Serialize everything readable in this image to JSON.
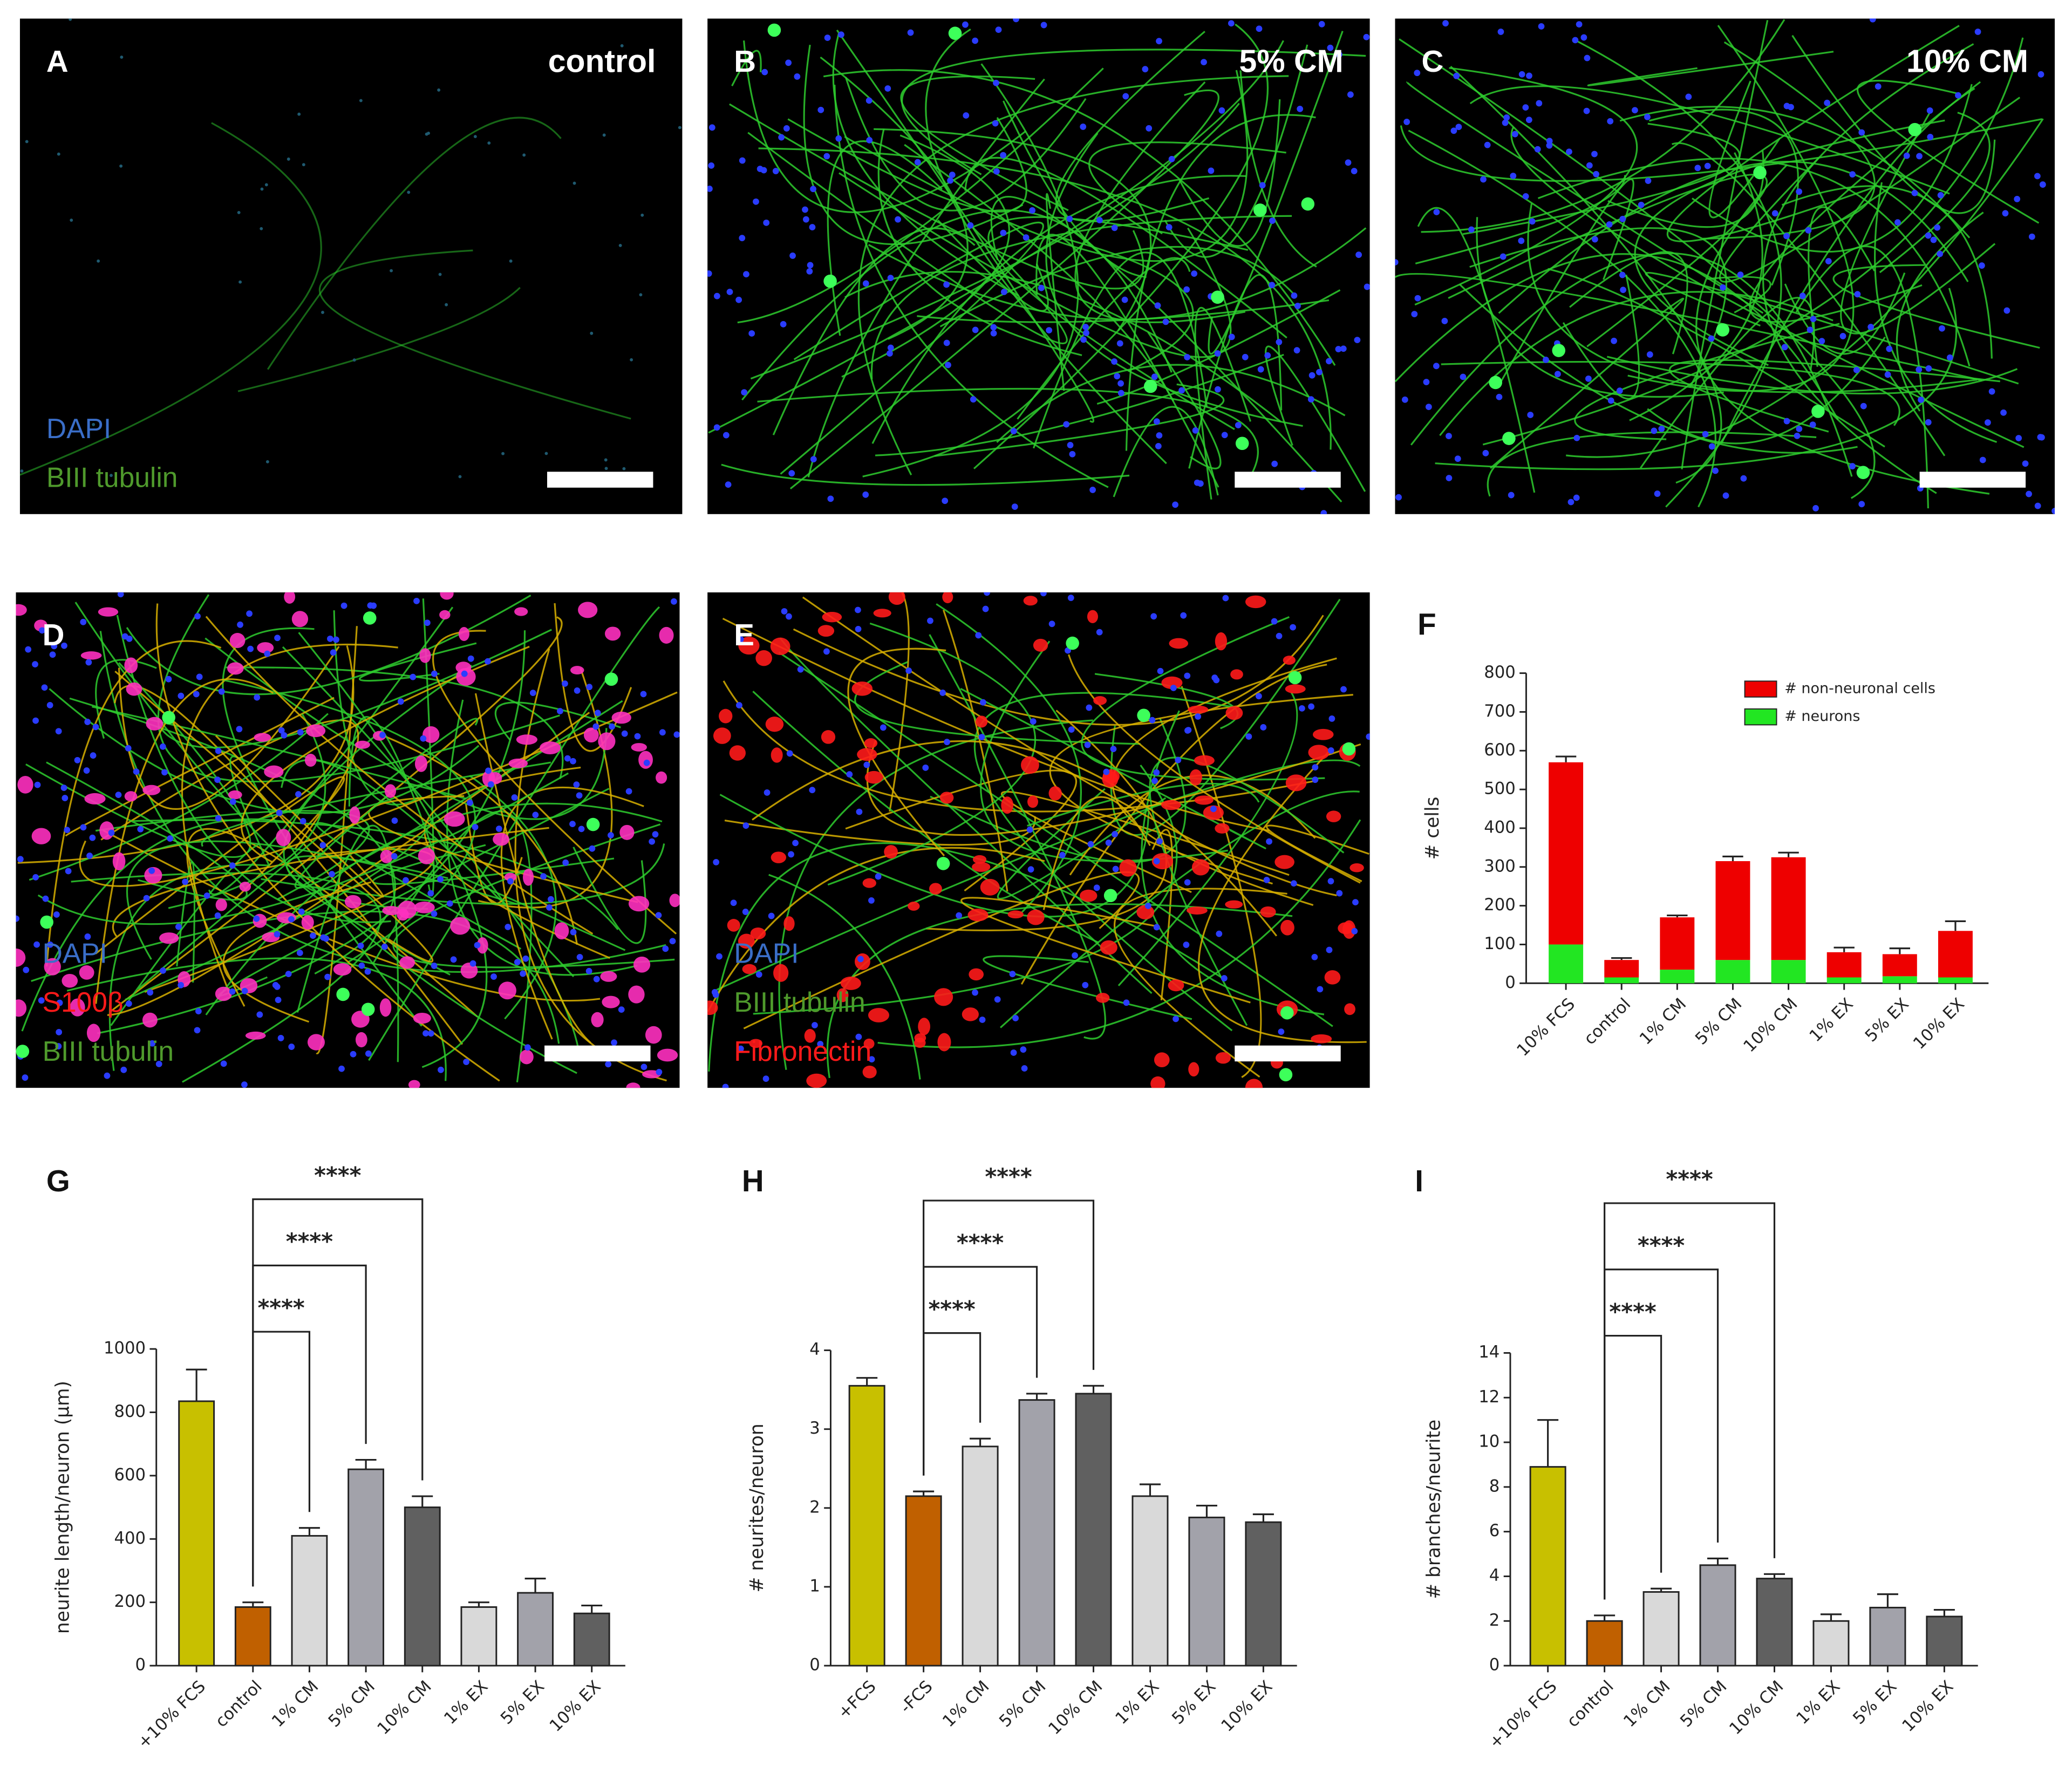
{
  "panels": [
    {
      "letter": "A",
      "condition": "control",
      "stains": [
        {
          "text": "DAPI",
          "color": "#3a6ec8"
        },
        {
          "text": "BIII tubulin",
          "color": "#4f9a2c"
        }
      ]
    },
    {
      "letter": "B",
      "condition": "5% CM",
      "stains": []
    },
    {
      "letter": "C",
      "condition": "10% CM",
      "stains": []
    },
    {
      "letter": "D",
      "stains": [
        {
          "text": "DAPI",
          "color": "#3a6ec8"
        },
        {
          "text": "S100β",
          "color": "#ff1a1a"
        },
        {
          "text": "BIII tubulin",
          "color": "#4f9a2c"
        }
      ]
    },
    {
      "letter": "E",
      "stains": [
        {
          "text": "DAPI",
          "color": "#3a6ec8"
        },
        {
          "text": "BIII tubulin",
          "color": "#4f9a2c"
        },
        {
          "text": "Fibronectin",
          "color": "#ff1a1a"
        }
      ]
    }
  ],
  "chart_data": [
    {
      "type": "stacked_bar",
      "panel_label": "F",
      "y_label": "# cells",
      "categories": [
        "10% FCS",
        "control",
        "1% CM",
        "5% CM",
        "10% CM",
        "1% EX",
        "5% EX",
        "10% EX"
      ],
      "series": [
        {
          "name": "# neurons",
          "color": "#22e622",
          "values": [
            100,
            15,
            35,
            60,
            60,
            15,
            18,
            15
          ]
        },
        {
          "name": "# non-neuronal cells",
          "color": "#ee0000",
          "values": [
            470,
            45,
            135,
            255,
            265,
            65,
            57,
            120
          ],
          "errors": [
            15,
            5,
            5,
            12,
            12,
            12,
            15,
            25
          ]
        }
      ],
      "legend": "upper right",
      "ylim": [
        0,
        800
      ],
      "yticks": [
        0,
        100,
        200,
        300,
        400,
        500,
        600,
        700,
        800
      ]
    },
    {
      "type": "bar",
      "panel_label": "G",
      "y_label": "neurite length/neuron (µm)",
      "categories": [
        "+10% FCS",
        "control",
        "1% CM",
        "5% CM",
        "10% CM",
        "1% EX",
        "5% EX",
        "10% EX"
      ],
      "values": [
        835,
        185,
        410,
        620,
        500,
        185,
        230,
        165
      ],
      "errors": [
        100,
        15,
        25,
        30,
        35,
        15,
        45,
        25
      ],
      "colors": [
        "#c8c000",
        "#c06000",
        "#d9d9d9",
        "#a2a2aa",
        "#606060",
        "#d9d9d9",
        "#a2a2aa",
        "#606060"
      ],
      "annotations": [
        {
          "from": 1,
          "to": 2,
          "label": "****"
        },
        {
          "from": 1,
          "to": 3,
          "label": "****"
        },
        {
          "from": 1,
          "to": 4,
          "label": "****"
        }
      ],
      "ylim": [
        0,
        1000
      ],
      "yticks": [
        0,
        200,
        400,
        600,
        800,
        1000
      ]
    },
    {
      "type": "bar",
      "panel_label": "H",
      "y_label": "# neurites/neuron",
      "categories": [
        "+FCS",
        "-FCS",
        "1% CM",
        "5% CM",
        "10% CM",
        "1% EX",
        "5% EX",
        "10% EX"
      ],
      "values": [
        3.55,
        2.15,
        2.78,
        3.37,
        3.45,
        2.15,
        1.88,
        1.82
      ],
      "errors": [
        0.1,
        0.06,
        0.1,
        0.08,
        0.1,
        0.15,
        0.15,
        0.1
      ],
      "colors": [
        "#c8c000",
        "#c06000",
        "#d9d9d9",
        "#a2a2aa",
        "#606060",
        "#d9d9d9",
        "#a2a2aa",
        "#606060"
      ],
      "annotations": [
        {
          "from": 1,
          "to": 2,
          "label": "****"
        },
        {
          "from": 1,
          "to": 3,
          "label": "****"
        },
        {
          "from": 1,
          "to": 4,
          "label": "****"
        }
      ],
      "ylim": [
        0,
        4
      ],
      "yticks": [
        0,
        1,
        2,
        3,
        4
      ]
    },
    {
      "type": "bar",
      "panel_label": "I",
      "y_label": "# branches/neurite",
      "categories": [
        "+10% FCS",
        "control",
        "1% CM",
        "5% CM",
        "10% CM",
        "1% EX",
        "5% EX",
        "10% EX"
      ],
      "values": [
        8.9,
        2.0,
        3.3,
        4.5,
        3.9,
        2.0,
        2.6,
        2.2
      ],
      "errors": [
        2.1,
        0.25,
        0.15,
        0.3,
        0.2,
        0.3,
        0.6,
        0.3
      ],
      "colors": [
        "#c8c000",
        "#c06000",
        "#d9d9d9",
        "#a2a2aa",
        "#606060",
        "#d9d9d9",
        "#a2a2aa",
        "#606060"
      ],
      "annotations": [
        {
          "from": 1,
          "to": 2,
          "label": "****"
        },
        {
          "from": 1,
          "to": 3,
          "label": "****"
        },
        {
          "from": 1,
          "to": 4,
          "label": "****"
        }
      ],
      "ylim": [
        0,
        14
      ],
      "yticks": [
        0,
        2,
        4,
        6,
        8,
        10,
        12,
        14
      ]
    }
  ]
}
